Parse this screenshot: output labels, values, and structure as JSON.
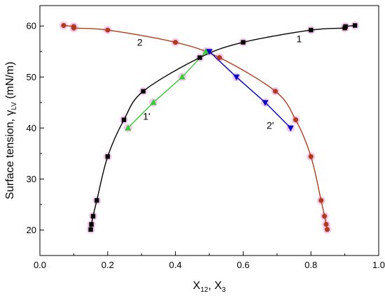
{
  "chart_data": {
    "type": "scatter",
    "xlabel": "X12, X3",
    "xlabel_parts": {
      "main1": "X",
      "sub1": "12",
      "sep": ", X",
      "sub2": "3"
    },
    "ylabel": "Surface tension, γLV (mN/m)",
    "ylabel_parts": {
      "pre": "Surface tension, γ",
      "sub": "LV",
      "post": " (mN/m)"
    },
    "xlim": [
      0.0,
      1.0
    ],
    "ylim": [
      15,
      64
    ],
    "xticks": [
      "0.0",
      "0.2",
      "0.4",
      "0.6",
      "0.8",
      "1.0"
    ],
    "yticks": [
      "20",
      "30",
      "40",
      "50",
      "60"
    ],
    "xtick_values": [
      0.0,
      0.2,
      0.4,
      0.6,
      0.8,
      1.0
    ],
    "ytick_values": [
      20,
      30,
      40,
      50,
      60
    ],
    "series": [
      {
        "label": "1",
        "marker": "square",
        "color": "#000000",
        "line_color": "#000000",
        "x": [
          0.15,
          0.152,
          0.157,
          0.168,
          0.2,
          0.248,
          0.305,
          0.472,
          0.6,
          0.8,
          0.9,
          0.902,
          0.93
        ],
        "y": [
          20.1,
          21.1,
          22.7,
          25.8,
          34.4,
          41.6,
          47.2,
          53.8,
          56.8,
          59.2,
          59.6,
          59.9,
          60.1
        ]
      },
      {
        "label": "2",
        "marker": "circle",
        "color": "#b03a1a",
        "line_color": "#b03a1a",
        "x": [
          0.07,
          0.1,
          0.1,
          0.2,
          0.4,
          0.53,
          0.695,
          0.755,
          0.8,
          0.83,
          0.84,
          0.845,
          0.848
        ],
        "y": [
          60.1,
          59.9,
          59.6,
          59.2,
          56.8,
          53.8,
          47.2,
          41.6,
          34.4,
          25.8,
          22.7,
          21.1,
          20.1
        ]
      },
      {
        "label": "1'",
        "marker": "triangle-up",
        "color": "#33cc33",
        "line_color": "#33cc33",
        "x": [
          0.26,
          0.335,
          0.42,
          0.49
        ],
        "y": [
          40.0,
          45.0,
          50.0,
          55.0
        ]
      },
      {
        "label": "2'",
        "marker": "triangle-down",
        "color": "#0000cc",
        "line_color": "#0000cc",
        "x": [
          0.5,
          0.58,
          0.665,
          0.74
        ],
        "y": [
          55.0,
          50.0,
          45.0,
          40.0
        ]
      }
    ],
    "annotations": [
      {
        "text": "1",
        "x": 0.765,
        "y": 57.5
      },
      {
        "text": "2",
        "x": 0.295,
        "y": 56.8
      },
      {
        "text": "1'",
        "x": 0.315,
        "y": 42.3
      },
      {
        "text": "2'",
        "x": 0.68,
        "y": 40.5
      }
    ],
    "highlight_color": "#f0b8ea"
  }
}
